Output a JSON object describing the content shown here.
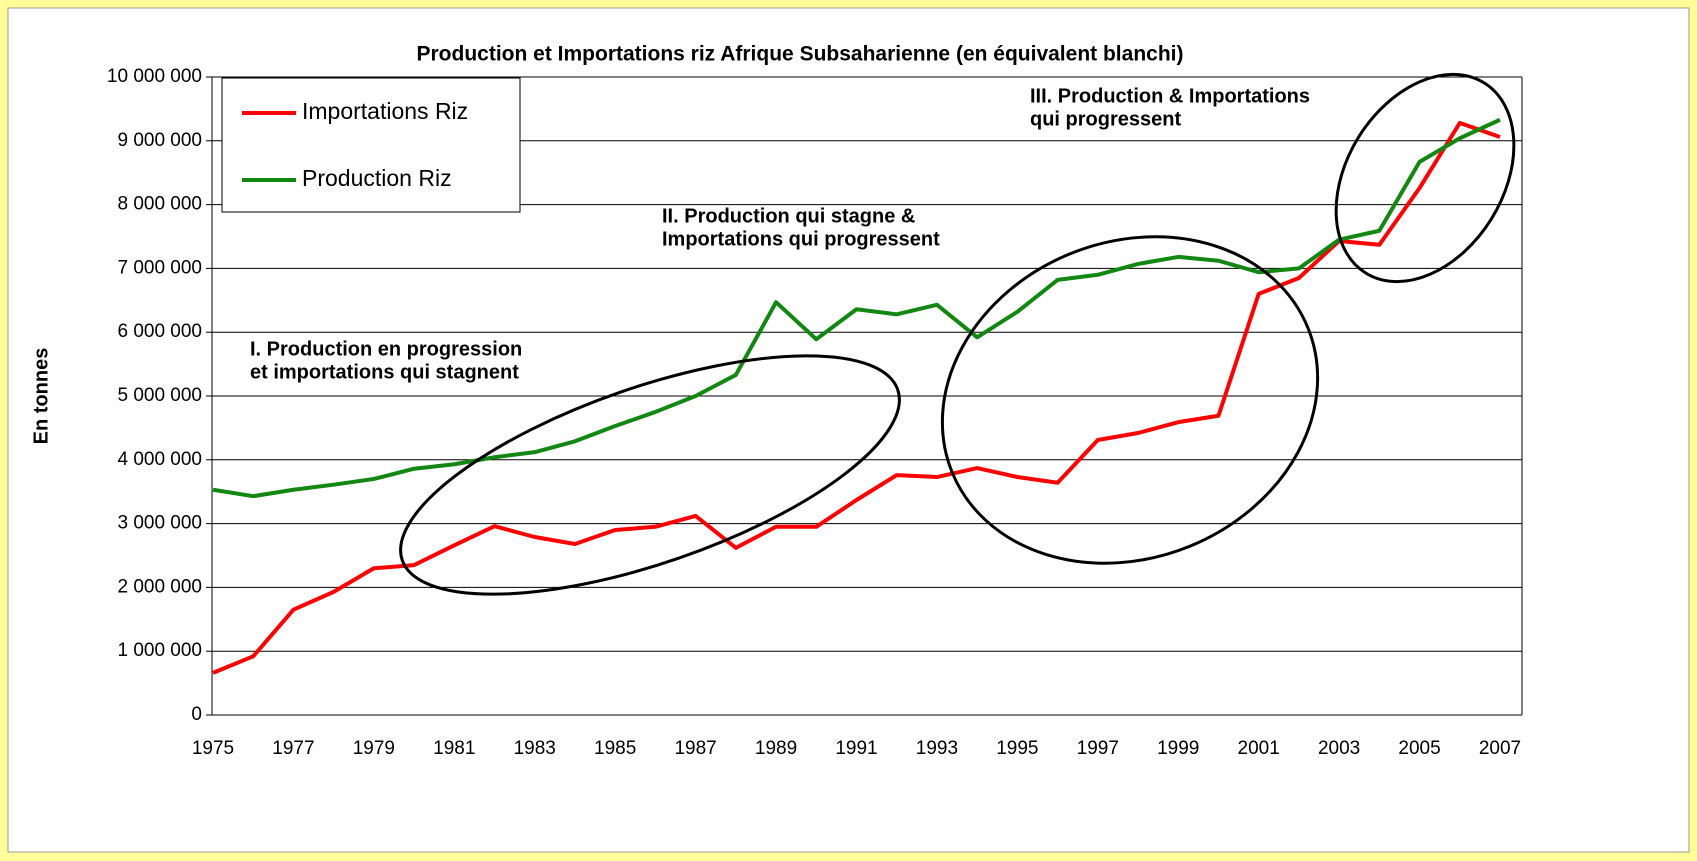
{
  "chart_data": {
    "type": "line",
    "title": "Production et Importations riz Afrique Subsaharienne (en équivalent blanchi)",
    "y_label": "En tonnes",
    "categories": [
      "1975",
      "1976",
      "1977",
      "1978",
      "1979",
      "1980",
      "1981",
      "1982",
      "1983",
      "1984",
      "1985",
      "1986",
      "1987",
      "1988",
      "1989",
      "1990",
      "1991",
      "1992",
      "1993",
      "1994",
      "1995",
      "1996",
      "1997",
      "1998",
      "1999",
      "2000",
      "2001",
      "2002",
      "2003",
      "2004",
      "2005",
      "2006",
      "2007"
    ],
    "category_labels_every": 2,
    "series": [
      {
        "name": "Importations Riz",
        "color": "#ff0000",
        "values": [
          660000,
          920000,
          1650000,
          1930000,
          2300000,
          2350000,
          2660000,
          2960000,
          2790000,
          2680000,
          2900000,
          2950000,
          3120000,
          2620000,
          2950000,
          2950000,
          3370000,
          3760000,
          3730000,
          3870000,
          3730000,
          3640000,
          4310000,
          4420000,
          4590000,
          4690000,
          6600000,
          6850000,
          7430000,
          7370000,
          8260000,
          9280000,
          9060000
        ]
      },
      {
        "name": "Production Riz",
        "color": "#128712",
        "values": [
          3530000,
          3430000,
          3530000,
          3610000,
          3700000,
          3860000,
          3930000,
          4040000,
          4120000,
          4290000,
          4530000,
          4750000,
          5000000,
          5330000,
          6470000,
          5890000,
          6360000,
          6280000,
          6430000,
          5920000,
          6320000,
          6820000,
          6900000,
          7070000,
          7180000,
          7120000,
          6940000,
          7000000,
          7450000,
          7590000,
          8670000,
          9040000,
          9330000
        ]
      }
    ],
    "ylim": [
      0,
      10000000
    ],
    "yticks": [
      0,
      {
        "value": 1000000,
        "label": "1 000 000"
      },
      {
        "value": 2000000,
        "label": "2 000 000"
      },
      {
        "value": 3000000,
        "label": "3 000 000"
      },
      {
        "value": 4000000,
        "label": "4 000 000"
      },
      {
        "value": 5000000,
        "label": "5 000 000"
      },
      {
        "value": 6000000,
        "label": "6 000 000"
      },
      {
        "value": 7000000,
        "label": "7 000 000"
      },
      {
        "value": 8000000,
        "label": "8 000 000"
      },
      {
        "value": 9000000,
        "label": "9 000 000"
      },
      {
        "value": 10000000,
        "label": "10 000 000"
      }
    ],
    "grid": true,
    "legend": "top-left",
    "annotations": [
      [
        "I. Production en progression",
        "et importations qui stagnent"
      ],
      [
        "II. Production qui stagne &",
        "Importations qui progressent"
      ],
      [
        "III. Production & Importations",
        "qui progressent"
      ]
    ]
  }
}
